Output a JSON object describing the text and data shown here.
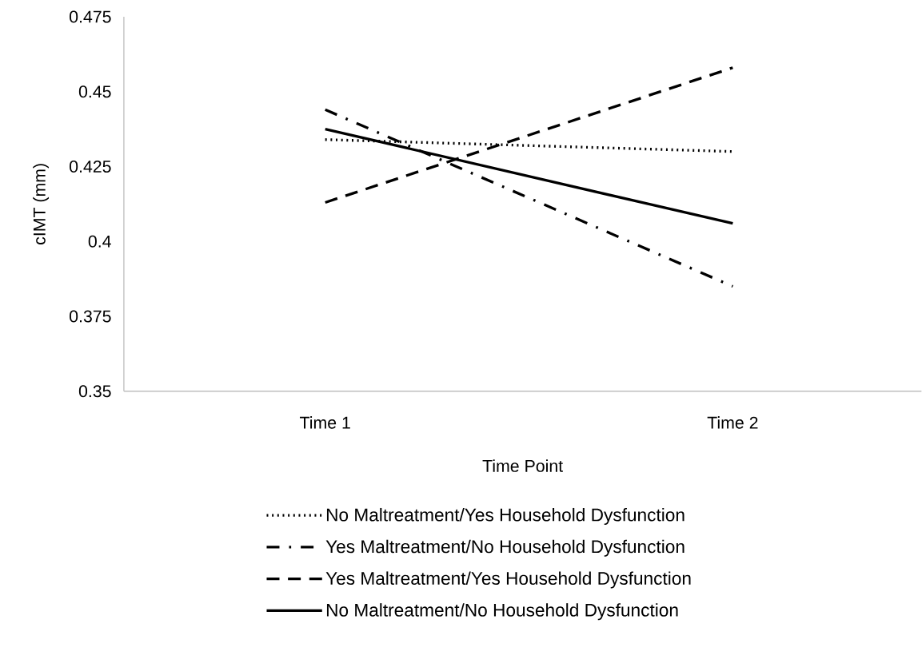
{
  "chart_data": {
    "type": "line",
    "xlabel": "Time Point",
    "ylabel": "cIMT (mm)",
    "categories": [
      "Time 1",
      "Time 2"
    ],
    "series": [
      {
        "name": "No Maltreatment/Yes Household Dysfunction",
        "color": "#000000",
        "line_style": "dotted",
        "values": [
          0.434,
          0.43
        ]
      },
      {
        "name": "Yes Maltreatment/No Household Dysfunction",
        "color": "#000000",
        "line_style": "dashdot",
        "values": [
          0.444,
          0.385
        ]
      },
      {
        "name": "Yes Maltreatment/Yes Household Dysfunction",
        "color": "#000000",
        "line_style": "dashed",
        "values": [
          0.413,
          0.458
        ]
      },
      {
        "name": "No Maltreatment/No Household Dysfunction",
        "color": "#000000",
        "line_style": "solid",
        "values": [
          0.4375,
          0.406
        ]
      }
    ],
    "ylim": [
      0.35,
      0.475
    ],
    "yticks": [
      0.35,
      0.375,
      0.4,
      0.425,
      0.45,
      0.475
    ],
    "grid": false,
    "legend": "bottom"
  }
}
